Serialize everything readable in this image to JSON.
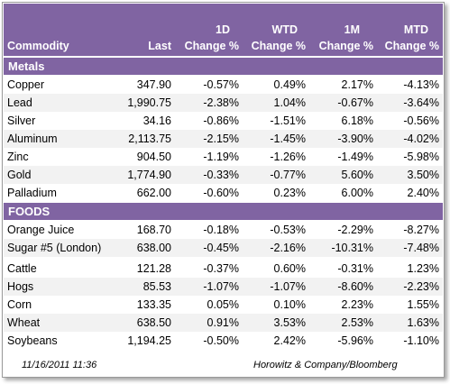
{
  "header": {
    "commodity": "Commodity",
    "last": "Last",
    "d1_top": "1D",
    "d1_bottom": "Change %",
    "wtd_top": "WTD",
    "wtd_bottom": "Change %",
    "m1_top": "1M",
    "m1_bottom": "Change %",
    "mtd_top": "MTD",
    "mtd_bottom": "Change %"
  },
  "sections": [
    {
      "title": "Metals",
      "rows": [
        {
          "name": "Copper",
          "last": "347.90",
          "d1": "-0.57%",
          "wtd": "0.49%",
          "m1": "2.17%",
          "mtd": "-4.13%"
        },
        {
          "name": "Lead",
          "last": "1,990.75",
          "d1": "-2.38%",
          "wtd": "1.04%",
          "m1": "-0.67%",
          "mtd": "-3.64%"
        },
        {
          "name": "Silver",
          "last": "34.16",
          "d1": "-0.86%",
          "wtd": "-1.51%",
          "m1": "6.18%",
          "mtd": "-0.56%"
        },
        {
          "name": "Aluminum",
          "last": "2,113.75",
          "d1": "-2.15%",
          "wtd": "-1.45%",
          "m1": "-3.90%",
          "mtd": "-4.02%"
        },
        {
          "name": "Zinc",
          "last": "904.50",
          "d1": "-1.19%",
          "wtd": "-1.26%",
          "m1": "-1.49%",
          "mtd": "-5.98%"
        },
        {
          "name": "Gold",
          "last": "1,774.90",
          "d1": "-0.33%",
          "wtd": "-0.77%",
          "m1": "5.60%",
          "mtd": "3.50%"
        },
        {
          "name": "Palladium",
          "last": "662.00",
          "d1": "-0.60%",
          "wtd": "0.23%",
          "m1": "6.00%",
          "mtd": "2.40%"
        }
      ]
    },
    {
      "title": "FOODS",
      "rows": [
        {
          "name": "Orange Juice",
          "last": "168.70",
          "d1": "-0.18%",
          "wtd": "-0.53%",
          "m1": "-2.29%",
          "mtd": "-8.27%"
        },
        {
          "name": "Sugar #5 (London)",
          "last": "638.00",
          "d1": "-0.45%",
          "wtd": "-2.16%",
          "m1": "-10.31%",
          "mtd": "-7.48%"
        },
        {
          "name": "Cattle",
          "last": "121.28",
          "d1": "-0.37%",
          "wtd": "0.60%",
          "m1": "-0.31%",
          "mtd": "1.23%"
        },
        {
          "name": "Hogs",
          "last": "85.53",
          "d1": "-1.07%",
          "wtd": "-1.07%",
          "m1": "-8.60%",
          "mtd": "-2.23%"
        },
        {
          "name": "Corn",
          "last": "133.35",
          "d1": "0.05%",
          "wtd": "0.10%",
          "m1": "2.23%",
          "mtd": "1.55%"
        },
        {
          "name": "Wheat",
          "last": "638.50",
          "d1": "0.91%",
          "wtd": "3.53%",
          "m1": "2.53%",
          "mtd": "1.63%"
        },
        {
          "name": "Soybeans",
          "last": "1,194.25",
          "d1": "-0.50%",
          "wtd": "2.42%",
          "m1": "-5.96%",
          "mtd": "-1.10%"
        }
      ]
    }
  ],
  "footer": {
    "timestamp": "11/16/2011 11:36",
    "source": "Horowitz & Company/Bloomberg"
  },
  "colors": {
    "header_bg": "#8064a2",
    "alt_row_bg": "#f2f2f2"
  }
}
